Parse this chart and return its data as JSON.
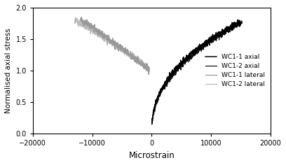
{
  "title": "",
  "xlabel": "Microstrain",
  "ylabel": "Normalised axial stress",
  "xlim": [
    -20000,
    20000
  ],
  "ylim": [
    0,
    2
  ],
  "xticks": [
    -20000,
    -10000,
    0,
    10000,
    20000
  ],
  "yticks": [
    0,
    0.5,
    1,
    1.5,
    2
  ],
  "legend_entries": [
    "WC1-1 axial",
    "WC1-1 lateral",
    "WC1-2 axial",
    "WC1-2 lateral"
  ],
  "axial_color1": "#000000",
  "axial_color2": "#111111",
  "lateral_color1": "#999999",
  "lateral_color2": "#bbbbbb",
  "figsize": [
    4.08,
    2.36
  ],
  "dpi": 100
}
